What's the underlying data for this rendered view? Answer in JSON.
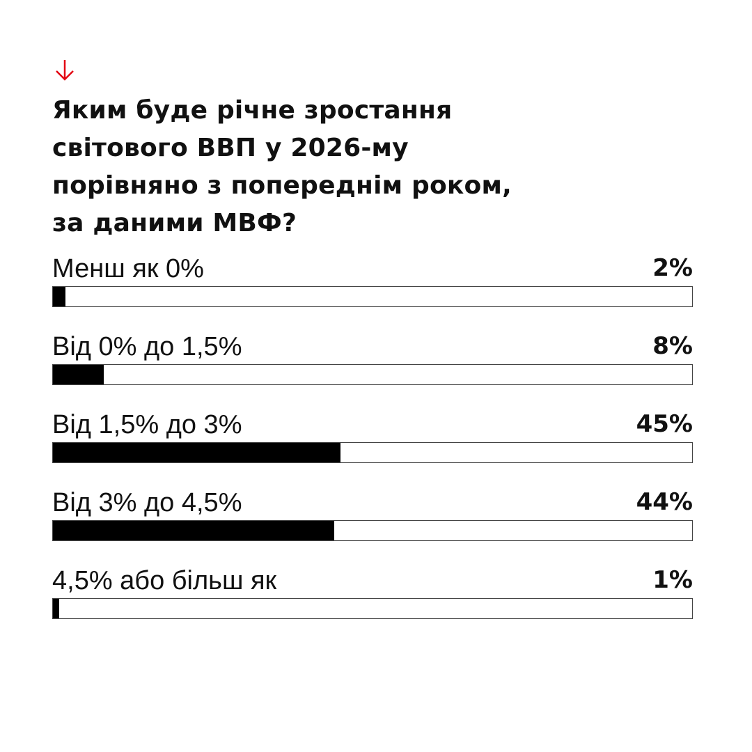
{
  "chart_data": {
    "type": "bar",
    "title": "Яким буде річне зростання\nсвітового ВВП у 2026-му\nпорівняно з попереднім роком,\nза даними МВФ?",
    "categories": [
      "Менш як 0%",
      "Від 0% до 1,5%",
      "Від 1,5% до 3%",
      "Від 3% до 4,5%",
      "4,5% або більш як"
    ],
    "values": [
      2,
      8,
      45,
      44,
      1
    ],
    "value_labels": [
      "2%",
      "8%",
      "45%",
      "44%",
      "1%"
    ],
    "xlim": [
      0,
      100
    ],
    "color": "#000000"
  }
}
